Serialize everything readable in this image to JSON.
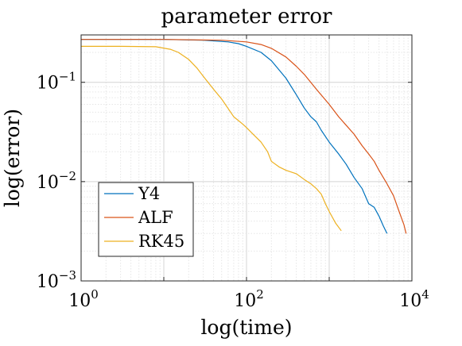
{
  "chart_data": {
    "type": "line",
    "title": "parameter error",
    "xlabel": "log(time)",
    "ylabel": "log(error)",
    "xscale": "log",
    "yscale": "log",
    "xlim": [
      1,
      10000
    ],
    "ylim": [
      0.001,
      0.3
    ],
    "grid": true,
    "minor_grid": true,
    "legend_position": "bottom-left",
    "x_ticks": [
      {
        "value": 1,
        "base": "10",
        "exp": "0"
      },
      {
        "value": 100,
        "base": "10",
        "exp": "2"
      },
      {
        "value": 10000,
        "base": "10",
        "exp": "4"
      }
    ],
    "y_ticks": [
      {
        "value": 0.001,
        "base": "10",
        "exp": "−3"
      },
      {
        "value": 0.01,
        "base": "10",
        "exp": "−2"
      },
      {
        "value": 0.1,
        "base": "10",
        "exp": "−1"
      }
    ],
    "series": [
      {
        "name": "Y4",
        "color": "#0072BD",
        "x": [
          1,
          10,
          30,
          60,
          80,
          100,
          150,
          200,
          300,
          400,
          500,
          600,
          700,
          800,
          1000,
          1300,
          1600,
          2000,
          2500,
          3000,
          3500,
          4000,
          4500,
          5000
        ],
        "y": [
          0.27,
          0.27,
          0.265,
          0.255,
          0.245,
          0.23,
          0.2,
          0.165,
          0.11,
          0.075,
          0.055,
          0.045,
          0.04,
          0.033,
          0.025,
          0.019,
          0.015,
          0.011,
          0.0085,
          0.006,
          0.0055,
          0.0045,
          0.0036,
          0.003
        ]
      },
      {
        "name": "ALF",
        "color": "#D95319",
        "x": [
          1,
          10,
          50,
          100,
          150,
          200,
          300,
          400,
          500,
          700,
          1000,
          1300,
          1600,
          2000,
          2500,
          3000,
          3500,
          4000,
          5000,
          6000,
          7000,
          8000,
          8500
        ],
        "y": [
          0.27,
          0.27,
          0.265,
          0.255,
          0.24,
          0.22,
          0.18,
          0.145,
          0.12,
          0.085,
          0.06,
          0.045,
          0.037,
          0.03,
          0.023,
          0.019,
          0.016,
          0.013,
          0.0095,
          0.0072,
          0.005,
          0.0037,
          0.003
        ]
      },
      {
        "name": "RK45",
        "color": "#EDB120",
        "x": [
          1,
          3,
          8,
          12,
          15,
          20,
          25,
          30,
          40,
          50,
          70,
          90,
          100,
          120,
          150,
          180,
          200,
          250,
          300,
          400,
          500,
          600,
          700,
          800,
          900,
          1000,
          1200,
          1400
        ],
        "y": [
          0.23,
          0.23,
          0.228,
          0.215,
          0.2,
          0.17,
          0.14,
          0.115,
          0.085,
          0.068,
          0.045,
          0.038,
          0.035,
          0.03,
          0.025,
          0.02,
          0.016,
          0.014,
          0.013,
          0.012,
          0.0105,
          0.0095,
          0.0085,
          0.0075,
          0.006,
          0.005,
          0.0038,
          0.0032
        ]
      }
    ]
  }
}
